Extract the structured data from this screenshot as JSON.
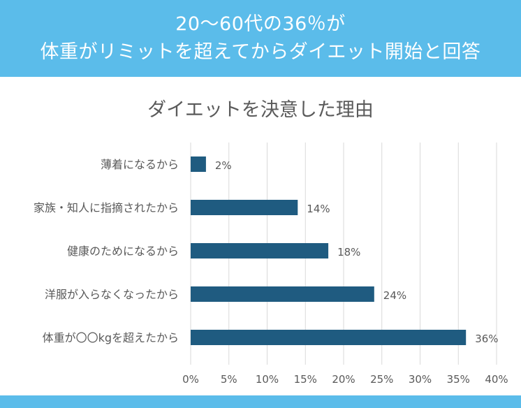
{
  "header": {
    "line1": "20～60代の36％が",
    "line2": "体重がリミットを超えてからダイエット開始と回答"
  },
  "colors": {
    "banner": "#5bbcea",
    "bar": "#1f5b80",
    "grid": "#d9d9d9",
    "text": "#595959"
  },
  "chart_data": {
    "type": "bar",
    "orientation": "horizontal",
    "title": "ダイエットを決意した理由",
    "categories": [
      "薄着になるから",
      "家族・知人に指摘されたから",
      "健康のためになるから",
      "洋服が入らなくなったから",
      "体重が〇〇kgを超えたから"
    ],
    "values": [
      2,
      14,
      18,
      24,
      36
    ],
    "data_labels": [
      "2%",
      "14%",
      "18%",
      "24%",
      "36%"
    ],
    "xlim": [
      0,
      40
    ],
    "xticks": [
      "0%",
      "5%",
      "10%",
      "15%",
      "20%",
      "25%",
      "30%",
      "35%",
      "40%"
    ],
    "grid": "vertical",
    "legend": "none"
  }
}
